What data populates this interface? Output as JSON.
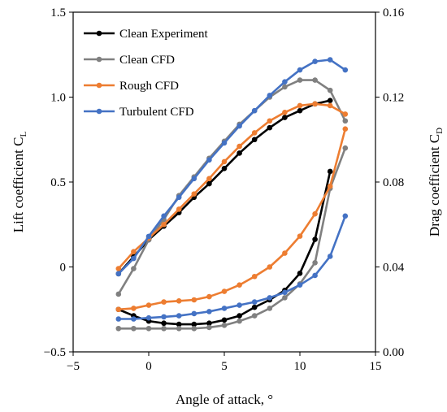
{
  "chart_data": {
    "type": "line",
    "xlabel": "Angle of attack, °",
    "ylabel_left": "Lift coefficient C",
    "ylabel_left_sub": "L",
    "ylabel_right": "Drag coefficient C",
    "ylabel_right_sub": "D",
    "xlim": [
      -5,
      15
    ],
    "ylim_left": [
      -0.5,
      1.5
    ],
    "ylim_right": [
      0.0,
      0.16
    ],
    "x_ticks": [
      "−5",
      "0",
      "5",
      "10",
      "15"
    ],
    "y_left_ticks": [
      "−0.5",
      "0",
      "0.5",
      "1.0",
      "1.5"
    ],
    "y_right_ticks": [
      "0.00",
      "0.04",
      "0.08",
      "0.12",
      "0.16"
    ],
    "grid": false,
    "legend_position": "top-left",
    "x": [
      -2,
      -1,
      0,
      1,
      2,
      3,
      4,
      5,
      6,
      7,
      8,
      9,
      10,
      11,
      12,
      13
    ],
    "series": [
      {
        "name": "Clean Experiment",
        "color": "#000000",
        "lift_x": [
          -2,
          -1,
          0,
          1,
          2,
          3,
          4,
          5,
          6,
          7,
          8,
          9,
          10,
          11,
          12
        ],
        "lift": [
          -0.04,
          0.06,
          0.16,
          0.24,
          0.32,
          0.41,
          0.49,
          0.58,
          0.67,
          0.75,
          0.82,
          0.88,
          0.92,
          0.96,
          0.98
        ],
        "drag_x": [
          -2,
          -1,
          0,
          1,
          2,
          3,
          4,
          5,
          6,
          7,
          8,
          9,
          10,
          11,
          12
        ],
        "drag": [
          0.02,
          0.017,
          0.0145,
          0.0135,
          0.013,
          0.013,
          0.0135,
          0.015,
          0.017,
          0.021,
          0.0245,
          0.029,
          0.037,
          0.053,
          0.085
        ]
      },
      {
        "name": "Clean CFD",
        "color": "#808080",
        "lift_x": [
          -2,
          -1,
          0,
          1,
          2,
          3,
          4,
          5,
          6,
          7,
          8,
          9,
          10,
          11,
          12,
          13
        ],
        "lift": [
          -0.16,
          -0.01,
          0.16,
          0.28,
          0.42,
          0.53,
          0.64,
          0.74,
          0.84,
          0.92,
          1.0,
          1.06,
          1.1,
          1.1,
          1.04,
          0.86
        ],
        "drag_x": [
          -2,
          -1,
          0,
          1,
          2,
          3,
          4,
          5,
          6,
          7,
          8,
          9,
          10,
          11,
          12,
          13
        ],
        "drag": [
          0.011,
          0.011,
          0.011,
          0.011,
          0.011,
          0.011,
          0.0115,
          0.0125,
          0.0145,
          0.017,
          0.0205,
          0.0255,
          0.032,
          0.042,
          0.077,
          0.096
        ]
      },
      {
        "name": "Rough CFD",
        "color": "#ED7D31",
        "lift_x": [
          -2,
          -1,
          0,
          1,
          2,
          3,
          4,
          5,
          6,
          7,
          8,
          9,
          10,
          11,
          12,
          13
        ],
        "lift": [
          -0.01,
          0.09,
          0.17,
          0.25,
          0.34,
          0.43,
          0.52,
          0.62,
          0.71,
          0.79,
          0.86,
          0.91,
          0.95,
          0.96,
          0.95,
          0.9
        ],
        "drag_x": [
          -2,
          -1,
          0,
          1,
          2,
          3,
          4,
          5,
          6,
          7,
          8,
          9,
          10,
          11,
          12,
          13
        ],
        "drag": [
          0.02,
          0.0205,
          0.022,
          0.0235,
          0.024,
          0.0245,
          0.026,
          0.0285,
          0.0315,
          0.0355,
          0.04,
          0.0465,
          0.0545,
          0.065,
          0.078,
          0.105
        ]
      },
      {
        "name": "Turbulent CFD",
        "color": "#4472C4",
        "lift_x": [
          -2,
          -1,
          0,
          1,
          2,
          3,
          4,
          5,
          6,
          7,
          8,
          9,
          10,
          11,
          12,
          13
        ],
        "lift": [
          -0.04,
          0.05,
          0.18,
          0.3,
          0.41,
          0.52,
          0.63,
          0.73,
          0.83,
          0.92,
          1.01,
          1.09,
          1.16,
          1.21,
          1.22,
          1.16
        ],
        "drag_x": [
          -2,
          -1,
          0,
          1,
          2,
          3,
          4,
          5,
          6,
          7,
          8,
          9,
          10,
          11,
          12,
          13
        ],
        "drag": [
          0.0155,
          0.0155,
          0.016,
          0.0165,
          0.017,
          0.018,
          0.019,
          0.0205,
          0.022,
          0.0235,
          0.0255,
          0.028,
          0.0315,
          0.036,
          0.045,
          0.064
        ]
      }
    ]
  }
}
